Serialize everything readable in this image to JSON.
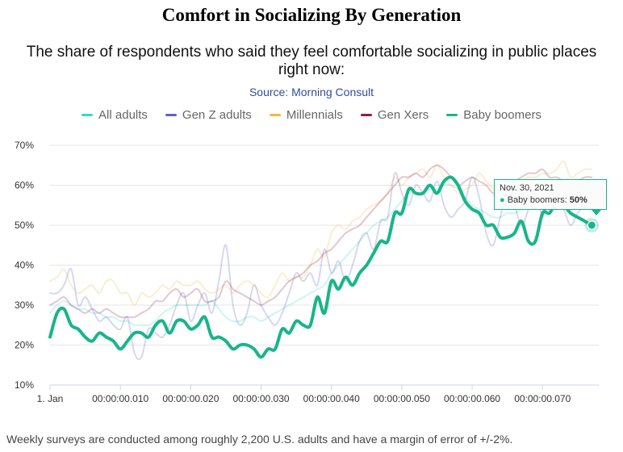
{
  "title": "Comfort in Socializing By Generation",
  "subtitle_line1": "The share of respondents who said they feel comfortable socializing in public places",
  "subtitle_line2": "right now:",
  "source": "Source: Morning Consult",
  "footnote": "Weekly surveys are conducted among roughly 2,200 U.S. adults and have a margin of error of +/-2%.",
  "tooltip": {
    "date": "Nov. 30, 2021",
    "bullet": "●",
    "series": "Baby boomers: ",
    "value": "50%"
  },
  "chart_data": {
    "type": "line",
    "title": "Comfort in Socializing By Generation",
    "xlabel": "",
    "ylabel": "",
    "ylim": [
      10,
      70
    ],
    "yticks": [
      "10%",
      "20%",
      "30%",
      "40%",
      "50%",
      "60%",
      "70%"
    ],
    "xlim": [
      0,
      78
    ],
    "xticks": [
      {
        "value": 0,
        "label": "1. Jan"
      },
      {
        "value": 10,
        "label": "00:00:00.010"
      },
      {
        "value": 20,
        "label": "00:00:00.020"
      },
      {
        "value": 30,
        "label": "00:00:00.030"
      },
      {
        "value": 40,
        "label": "00:00:00.040"
      },
      {
        "value": 50,
        "label": "00:00:00.050"
      },
      {
        "value": 60,
        "label": "00:00:00.060"
      },
      {
        "value": 70,
        "label": "00:00:00.070"
      }
    ],
    "grid": true,
    "legend_position": "top",
    "highlighted_series": "Baby boomers",
    "series": [
      {
        "name": "All adults",
        "color": "#34d9d0",
        "values": [
          28,
          30,
          31,
          30,
          29,
          29,
          28,
          28,
          27,
          27,
          26,
          26,
          25,
          25,
          25,
          26,
          28,
          29,
          30,
          30,
          30,
          30,
          30,
          31,
          29,
          27,
          26,
          26,
          27,
          27,
          26,
          27,
          28,
          29,
          30,
          31,
          32,
          33,
          34,
          35,
          38,
          40,
          42,
          44,
          46,
          48,
          50,
          51,
          52,
          54,
          56,
          58,
          58,
          58,
          59,
          59,
          60,
          60,
          59,
          57,
          55,
          54,
          53,
          52,
          52,
          53,
          53,
          54,
          55,
          55,
          55,
          56,
          57,
          57,
          56,
          56,
          55,
          55
        ]
      },
      {
        "name": "Gen Z adults",
        "color": "#5a63c8",
        "values": [
          33,
          33,
          35,
          39,
          30,
          32,
          29,
          26,
          27,
          25,
          24,
          27,
          18,
          17,
          24,
          23,
          22,
          25,
          30,
          33,
          26,
          30,
          33,
          28,
          36,
          45,
          30,
          25,
          28,
          35,
          30,
          27,
          25,
          28,
          33,
          38,
          36,
          38,
          35,
          44,
          38,
          41,
          36,
          40,
          46,
          48,
          44,
          51,
          52,
          63,
          58,
          55,
          60,
          58,
          56,
          61,
          55,
          52,
          54,
          56,
          62,
          57,
          48,
          45,
          52,
          58,
          55,
          50,
          54,
          60,
          52,
          58,
          56,
          54,
          50,
          53,
          55,
          56
        ]
      },
      {
        "name": "Millennials",
        "color": "#f2b840",
        "values": [
          36,
          37,
          39,
          35,
          33,
          34,
          35,
          33,
          36,
          36,
          33,
          33,
          30,
          33,
          32,
          33,
          35,
          34,
          36,
          35,
          35,
          36,
          34,
          33,
          34,
          35,
          33,
          35,
          36,
          35,
          33,
          32,
          35,
          38,
          36,
          37,
          37,
          40,
          44,
          42,
          48,
          50,
          49,
          51,
          52,
          54,
          55,
          56,
          58,
          62,
          60,
          62,
          63,
          64,
          62,
          65,
          62,
          60,
          58,
          59,
          60,
          63,
          61,
          59,
          56,
          58,
          60,
          61,
          62,
          62,
          63,
          63,
          64,
          66,
          62,
          63,
          64,
          64
        ]
      },
      {
        "name": "Gen Xers",
        "color": "#8c1f46",
        "values": [
          30,
          31,
          32,
          30,
          29,
          28,
          29,
          28,
          29,
          28,
          27,
          27,
          27,
          28,
          29,
          31,
          31,
          33,
          34,
          32,
          33,
          34,
          31,
          31,
          32,
          36,
          34,
          33,
          32,
          31,
          30,
          31,
          32,
          34,
          36,
          37,
          38,
          40,
          41,
          43,
          44,
          46,
          48,
          49,
          50,
          52,
          54,
          56,
          58,
          60,
          62,
          62,
          63,
          62,
          64,
          65,
          64,
          62,
          60,
          61,
          62,
          61,
          60,
          58,
          59,
          60,
          61,
          62,
          63,
          63,
          64,
          62,
          62,
          61,
          60,
          61,
          62,
          62
        ]
      },
      {
        "name": "Baby boomers",
        "color": "#19b58a",
        "values": [
          22,
          28,
          29,
          25,
          24,
          22,
          21,
          23,
          22,
          21,
          19,
          21,
          23,
          23,
          22,
          25,
          26,
          23,
          26,
          26,
          24,
          25,
          27,
          22,
          22,
          21,
          19,
          20,
          20,
          19,
          17,
          19,
          19,
          24,
          23,
          26,
          25,
          25,
          32,
          28,
          36,
          34,
          37,
          35,
          38,
          40,
          43,
          46,
          46,
          53,
          53,
          59,
          58,
          58,
          60,
          58,
          61,
          62,
          60,
          56,
          54,
          53,
          50,
          50,
          47,
          47,
          48,
          51,
          46,
          46,
          53,
          53,
          56,
          55,
          53,
          52,
          51,
          50
        ]
      }
    ]
  },
  "colors": {
    "highlight": "#19b58a",
    "grid": "#e6e6e6",
    "axis": "#ccd6eb",
    "tick_text": "#333333"
  }
}
